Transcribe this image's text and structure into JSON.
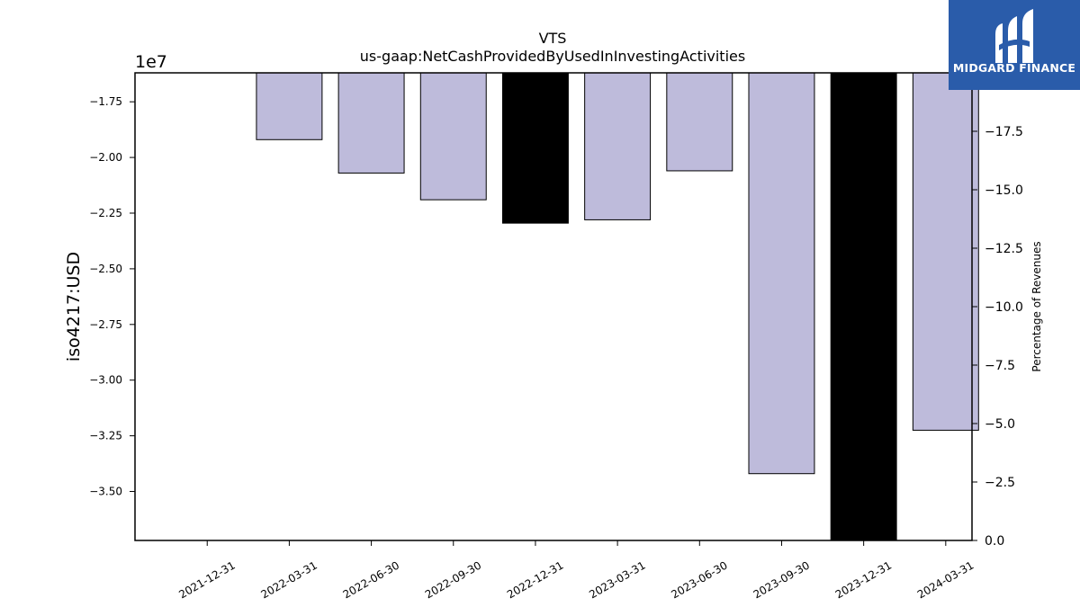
{
  "chart_data": {
    "type": "bar",
    "title": "VTS",
    "subtitle": "us-gaap:NetCashProvidedByUsedInInvestingActivities",
    "ylabel": "iso4217:USD",
    "y2label": "Percentage of Revenues",
    "offset_text": "1e7",
    "categories": [
      "2021-12-31",
      "2022-03-31",
      "2022-06-30",
      "2022-09-30",
      "2022-12-31",
      "2023-03-31",
      "2023-06-30",
      "2023-09-30",
      "2023-12-31",
      "2024-03-31"
    ],
    "values": [
      null,
      -19200000,
      -20700000,
      -21900000,
      -22950000,
      -22800000,
      -20600000,
      -34200000,
      -37300000,
      -32250000
    ],
    "highlighted": [
      false,
      false,
      false,
      false,
      true,
      false,
      false,
      false,
      true,
      false
    ],
    "ylim": [
      -37200000,
      -16200000
    ],
    "yticks": [
      -17500000,
      -20000000,
      -22500000,
      -25000000,
      -27500000,
      -30000000,
      -32500000,
      -35000000
    ],
    "ytick_labels": [
      "−1.75",
      "−2.00",
      "−2.25",
      "−2.50",
      "−2.75",
      "−3.00",
      "−3.25",
      "−3.50"
    ],
    "y2lim": [
      0,
      -20
    ],
    "y2ticks": [
      -17.5,
      -15.0,
      -12.5,
      -10.0,
      -7.5,
      -5.0,
      -2.5,
      0.0
    ],
    "y2tick_labels": [
      "−17.5",
      "−15.0",
      "−12.5",
      "−10.0",
      "−7.5",
      "−5.0",
      "−2.5",
      "0.0"
    ],
    "grid": false,
    "colors": {
      "bar": "#bebbdb",
      "highlight": "#000000",
      "edge": "#000000"
    }
  },
  "logo": {
    "text": "MIDGARD FINANCE",
    "bg": "#2a5caa",
    "icon": "midgard-logo-icon"
  }
}
